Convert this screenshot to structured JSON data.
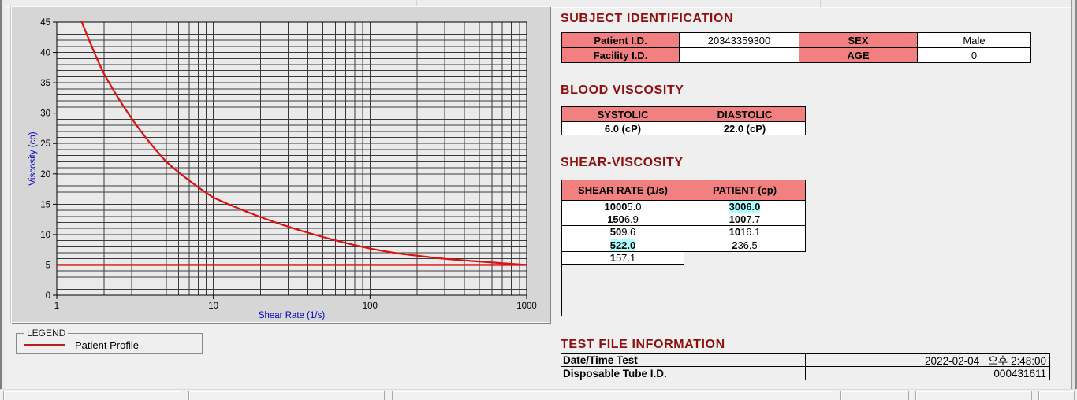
{
  "colors": {
    "page_bg": "#efefef",
    "chart_panel_bg": "#d6d6d6",
    "plot_bg": "#eaeaea",
    "grid": "#3a3a3a",
    "header_pink": "#f28080",
    "highlight_cyan": "#aaffff",
    "section_title_red": "#8e0e0e",
    "curve_red": "#dd1111",
    "legend_line_red": "#b22222",
    "axis_label_blue": "#0000c8"
  },
  "chart_data": {
    "type": "line",
    "x_scale": "log",
    "xlabel": "Shear Rate (1/s)",
    "ylabel": "Viscosity (cp)",
    "xlim": [
      1,
      1000
    ],
    "ylim": [
      0,
      45
    ],
    "x_ticks": [
      "1",
      "10",
      "100",
      "1000"
    ],
    "y_ticks": [
      0,
      5,
      10,
      15,
      20,
      25,
      30,
      35,
      40,
      45
    ],
    "grid": "minor: horizontal every 1 cp, vertical log mantissa lines; on",
    "x": [
      1,
      2,
      5,
      10,
      50,
      100,
      150,
      300,
      1000
    ],
    "series": [
      {
        "name": "Patient Profile",
        "values": [
          57.1,
          36.5,
          22.0,
          16.1,
          9.6,
          7.7,
          6.9,
          6.0,
          5.0
        ],
        "color": "#dd1111"
      }
    ],
    "reference_line": {
      "y": 5.0,
      "color": "#dd1111"
    },
    "legend": {
      "title": "LEGEND",
      "position": "below-left",
      "entries": [
        {
          "label": "Patient Profile",
          "color": "#b22222"
        }
      ]
    }
  },
  "subject": {
    "title": "SUBJECT IDENTIFICATION",
    "rows": [
      {
        "label1": "Patient I.D.",
        "value1": "20343359300",
        "label2": "SEX",
        "value2": "Male"
      },
      {
        "label1": "Facility I.D.",
        "value1": "",
        "label2": "AGE",
        "value2": "0"
      }
    ]
  },
  "blood": {
    "title": "BLOOD VISCOSITY",
    "headers": [
      "SYSTOLIC",
      "DIASTOLIC"
    ],
    "values": [
      "6.0 (cP)",
      "22.0 (cP)"
    ]
  },
  "shear": {
    "title": "SHEAR-VISCOSITY",
    "headers": [
      "SHEAR RATE (1/s)",
      "PATIENT (cp)"
    ],
    "rows": [
      {
        "rate": "1000",
        "value": "5.0",
        "highlight": false
      },
      {
        "rate": "300",
        "value": "6.0",
        "highlight": true
      },
      {
        "rate": "150",
        "value": "6.9",
        "highlight": false
      },
      {
        "rate": "100",
        "value": "7.7",
        "highlight": false
      },
      {
        "rate": "50",
        "value": "9.6",
        "highlight": false
      },
      {
        "rate": "10",
        "value": "16.1",
        "highlight": false
      },
      {
        "rate": "5",
        "value": "22.0",
        "highlight": true
      },
      {
        "rate": "2",
        "value": "36.5",
        "highlight": false
      },
      {
        "rate": "1",
        "value": "57.1",
        "highlight": false
      }
    ]
  },
  "testfile": {
    "title": "TEST FILE INFORMATION",
    "rows": [
      {
        "label": "Date/Time Test",
        "value": "2022-02-04   오후 2:48:00"
      },
      {
        "label": "Disposable Tube I.D.",
        "value": "000431611"
      }
    ]
  }
}
